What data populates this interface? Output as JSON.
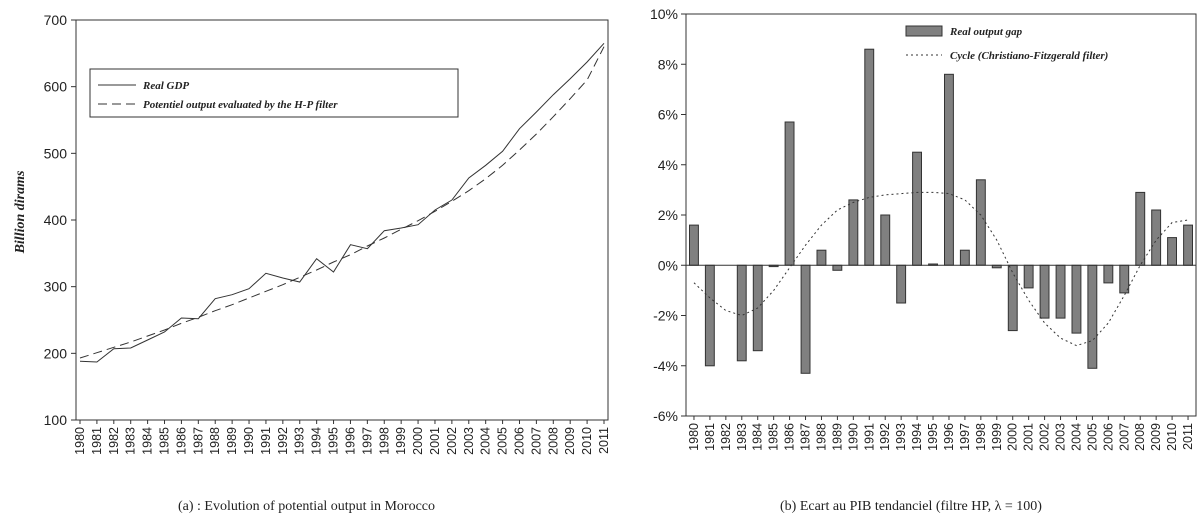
{
  "chart_data": [
    {
      "type": "line",
      "caption": "(a)  : Evolution of potential output in Morocco",
      "ylabel": "Billion dirams",
      "xlabel": "",
      "x": [
        1980,
        1981,
        1982,
        1983,
        1984,
        1985,
        1986,
        1987,
        1988,
        1989,
        1990,
        1991,
        1992,
        1993,
        1994,
        1995,
        1996,
        1997,
        1998,
        1999,
        2000,
        2001,
        2002,
        2003,
        2004,
        2005,
        2006,
        2007,
        2008,
        2009,
        2010,
        2011
      ],
      "ylim": [
        100,
        700
      ],
      "yticks": [
        100,
        200,
        300,
        400,
        500,
        600,
        700
      ],
      "legend_position": "top-left",
      "series": [
        {
          "name": "Real GDP",
          "style": "solid",
          "values": [
            188,
            187,
            207,
            208,
            220,
            232,
            253,
            252,
            282,
            288,
            297,
            320,
            313,
            307,
            342,
            322,
            363,
            357,
            384,
            388,
            393,
            415,
            430,
            463,
            482,
            503,
            537,
            562,
            588,
            612,
            637,
            665
          ]
        },
        {
          "name": "Potentiel output evaluated by the H-P filter",
          "style": "dashed",
          "values": [
            193,
            201,
            209,
            217,
            226,
            235,
            245,
            254,
            264,
            273,
            283,
            293,
            303,
            314,
            325,
            337,
            348,
            361,
            373,
            386,
            399,
            413,
            428,
            444,
            462,
            482,
            505,
            529,
            555,
            582,
            610,
            660
          ]
        }
      ]
    },
    {
      "type": "bar",
      "caption": "(b) Ecart au PIB tendanciel (filtre HP, λ = 100)",
      "categories": [
        "1980",
        "1981",
        "1982",
        "1983",
        "1984",
        "1985",
        "1986",
        "1987",
        "1988",
        "1989",
        "1990",
        "1991",
        "1992",
        "1993",
        "1994",
        "1995",
        "1996",
        "1997",
        "1998",
        "1999",
        "2000",
        "2001",
        "2002",
        "2003",
        "2004",
        "2005",
        "2006",
        "2007",
        "2008",
        "2009",
        "2010",
        "2011"
      ],
      "ylim": [
        -6,
        10
      ],
      "yticks": [
        -6,
        -4,
        -2,
        0,
        2,
        4,
        6,
        8,
        10
      ],
      "ytick_suffix": "%",
      "legend_position": "top-right",
      "series": [
        {
          "name": "Real output gap",
          "type": "bar",
          "values": [
            1.6,
            -4.0,
            0,
            -3.8,
            -3.4,
            -0.05,
            5.7,
            -4.3,
            0.6,
            -0.2,
            2.6,
            8.6,
            2.0,
            -1.5,
            4.5,
            0.05,
            7.6,
            0.6,
            3.4,
            -0.1,
            -2.6,
            -0.9,
            -2.1,
            -2.1,
            -2.7,
            -4.1,
            -0.7,
            -1.1,
            2.9,
            2.2,
            1.1,
            1.6
          ]
        },
        {
          "name": "Cycle (Christiano-Fitzgerald filter)",
          "type": "line",
          "style": "dotted",
          "values": [
            -0.7,
            -1.3,
            -1.8,
            -2.0,
            -1.7,
            -1.0,
            -0.1,
            0.8,
            1.6,
            2.2,
            2.5,
            2.7,
            2.8,
            2.85,
            2.9,
            2.9,
            2.85,
            2.6,
            2.0,
            1.0,
            -0.3,
            -1.4,
            -2.3,
            -2.9,
            -3.2,
            -3.0,
            -2.3,
            -1.2,
            0.0,
            1.0,
            1.7,
            1.8
          ]
        }
      ]
    }
  ]
}
